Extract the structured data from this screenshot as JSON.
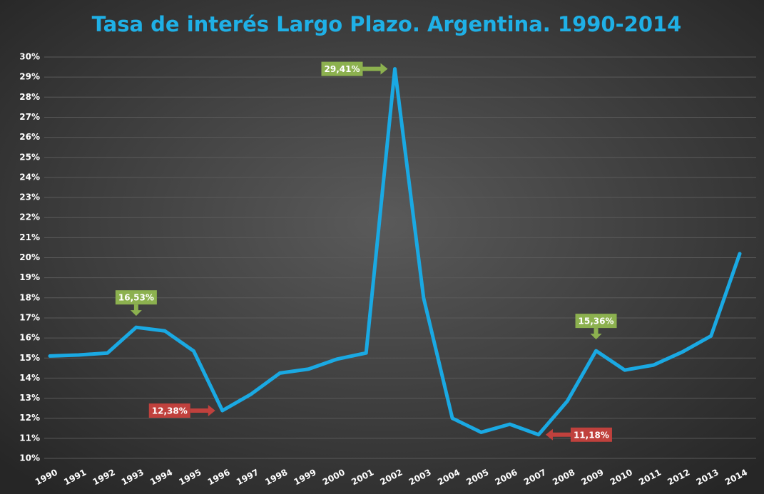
{
  "chart_data": {
    "type": "line",
    "title": "Tasa de interés Largo Plazo. Argentina. 1990-2014",
    "categories": [
      "1990",
      "1991",
      "1992",
      "1993",
      "1994",
      "1995",
      "1996",
      "1997",
      "1998",
      "1999",
      "2000",
      "2001",
      "2002",
      "2003",
      "2004",
      "2005",
      "2006",
      "2007",
      "2008",
      "2009",
      "2010",
      "2011",
      "2012",
      "2013",
      "2014"
    ],
    "values": [
      15.1,
      15.15,
      15.25,
      16.53,
      16.35,
      15.35,
      12.38,
      13.2,
      14.25,
      14.45,
      14.95,
      15.25,
      29.41,
      18.0,
      12.0,
      11.3,
      11.7,
      11.18,
      12.85,
      15.36,
      14.4,
      14.65,
      15.3,
      16.1,
      20.2
    ],
    "value_labels": [
      null,
      null,
      null,
      "16,53%",
      null,
      null,
      "12,38%",
      null,
      null,
      null,
      null,
      null,
      "29,41%",
      null,
      null,
      null,
      null,
      "11,18%",
      null,
      "15,36%",
      null,
      null,
      null,
      null,
      null
    ],
    "value_label_colors": [
      null,
      null,
      null,
      "#8cb14f",
      null,
      null,
      "#c0413d",
      null,
      null,
      null,
      null,
      null,
      "#8cb14f",
      null,
      null,
      null,
      null,
      "#c0413d",
      null,
      "#8cb14f",
      null,
      null,
      null,
      null,
      null
    ],
    "value_label_positions": [
      null,
      null,
      null,
      "above",
      null,
      null,
      "left",
      null,
      null,
      null,
      null,
      null,
      "left",
      null,
      null,
      null,
      null,
      "right",
      null,
      "above",
      null,
      null,
      null,
      null,
      null
    ],
    "color": "#1aa9e3",
    "ylim": [
      10,
      30
    ],
    "yticks": [
      {
        "value": 10,
        "label": "10%"
      },
      {
        "value": 11,
        "label": "11%"
      },
      {
        "value": 12,
        "label": "12%"
      },
      {
        "value": 13,
        "label": "13%"
      },
      {
        "value": 14,
        "label": "14%"
      },
      {
        "value": 15,
        "label": "15%"
      },
      {
        "value": 16,
        "label": "16%"
      },
      {
        "value": 17,
        "label": "17%"
      },
      {
        "value": 18,
        "label": "18%"
      },
      {
        "value": 19,
        "label": "19%"
      },
      {
        "value": 20,
        "label": "20%"
      },
      {
        "value": 21,
        "label": "21%"
      },
      {
        "value": 22,
        "label": "22%"
      },
      {
        "value": 23,
        "label": "23%"
      },
      {
        "value": 24,
        "label": "24%"
      },
      {
        "value": 25,
        "label": "25%"
      },
      {
        "value": 26,
        "label": "26%"
      },
      {
        "value": 27,
        "label": "27%"
      },
      {
        "value": 28,
        "label": "28%"
      },
      {
        "value": 29,
        "label": "29%"
      },
      {
        "value": 30,
        "label": "30%"
      }
    ],
    "grid": true
  }
}
